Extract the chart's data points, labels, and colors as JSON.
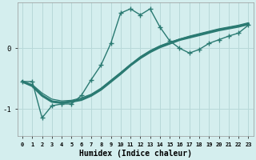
{
  "xlabel": "Humidex (Indice chaleur)",
  "bg_color": "#d4eeee",
  "grid_color": "#b8d8d8",
  "line_color": "#2a7a72",
  "x_ticks": [
    0,
    1,
    2,
    3,
    4,
    5,
    6,
    7,
    8,
    9,
    10,
    11,
    12,
    13,
    14,
    15,
    16,
    17,
    18,
    19,
    20,
    21,
    22,
    23
  ],
  "ylim": [
    -1.45,
    0.75
  ],
  "yticks": [
    -1,
    0
  ],
  "curve1_x": [
    0,
    1,
    2,
    3,
    4,
    5,
    6,
    7,
    8,
    9,
    10,
    11,
    12,
    13,
    14,
    15,
    16,
    17,
    18,
    19,
    20,
    21,
    22,
    23
  ],
  "curve1_y": [
    -0.55,
    -0.55,
    -1.15,
    -0.95,
    -0.92,
    -0.92,
    -0.78,
    -0.52,
    -0.28,
    0.08,
    0.58,
    0.65,
    0.55,
    0.65,
    0.35,
    0.12,
    0.0,
    -0.08,
    -0.02,
    0.08,
    0.14,
    0.2,
    0.25,
    0.38
  ],
  "curve2_x": [
    0,
    1,
    2,
    3,
    4,
    5,
    6,
    7,
    8,
    9,
    10,
    11,
    12,
    13,
    14,
    15,
    16,
    17,
    18,
    19,
    20,
    21,
    22,
    23
  ],
  "curve2_y": [
    -0.55,
    -0.62,
    -0.78,
    -0.88,
    -0.9,
    -0.88,
    -0.85,
    -0.78,
    -0.68,
    -0.55,
    -0.42,
    -0.28,
    -0.16,
    -0.06,
    0.02,
    0.08,
    0.14,
    0.18,
    0.22,
    0.26,
    0.3,
    0.33,
    0.36,
    0.4
  ],
  "curve3_x": [
    0,
    1,
    2,
    3,
    4,
    5,
    6,
    7,
    8,
    9,
    10,
    11,
    12,
    13,
    14,
    15,
    16,
    17,
    18,
    19,
    20,
    21,
    22,
    23
  ],
  "curve3_y": [
    -0.55,
    -0.6,
    -0.74,
    -0.84,
    -0.87,
    -0.86,
    -0.82,
    -0.76,
    -0.66,
    -0.53,
    -0.4,
    -0.27,
    -0.14,
    -0.04,
    0.04,
    0.1,
    0.15,
    0.2,
    0.24,
    0.28,
    0.32,
    0.35,
    0.38,
    0.42
  ]
}
